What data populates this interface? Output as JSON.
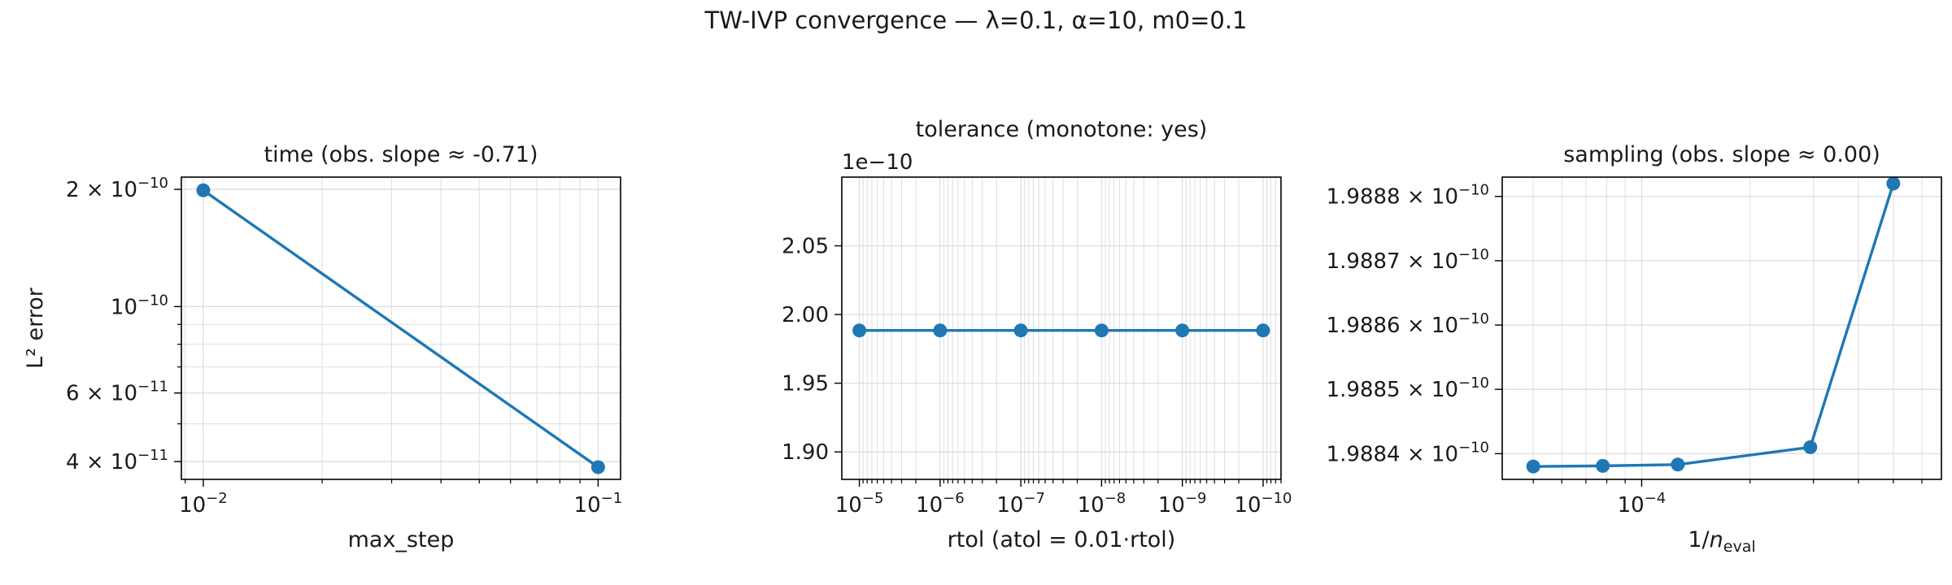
{
  "suptitle": "TW-IVP convergence — λ=0.1, α=10, m0=0.1",
  "colors": {
    "series": "#1f77b4",
    "grid": "#dedede",
    "axes": "#000000"
  },
  "chart_data": [
    {
      "type": "line",
      "title": "time (obs. slope ≈ -0.71)",
      "xlabel": "max_step",
      "ylabel": "L² error",
      "xscale": "log",
      "yscale": "log",
      "xlim": [
        0.0088,
        0.114
      ],
      "ylim": [
        3.6e-11,
        2.15e-10
      ],
      "xticks": [
        {
          "value": 0.01,
          "mant": "10",
          "exp": "−2"
        },
        {
          "value": 0.1,
          "mant": "10",
          "exp": "−1"
        }
      ],
      "yticks": [
        {
          "value": 4e-11,
          "mant": "4 × 10",
          "exp": "−11"
        },
        {
          "value": 6e-11,
          "mant": "6 × 10",
          "exp": "−11"
        },
        {
          "value": 1e-10,
          "mant": "10",
          "exp": "−10"
        },
        {
          "value": 2e-10,
          "mant": "2 × 10",
          "exp": "−10"
        }
      ],
      "x": [
        0.01,
        0.1
      ],
      "y": [
        1.9884e-10,
        3.87e-11
      ],
      "grid": true
    },
    {
      "type": "line",
      "title": "tolerance (monotone: yes)",
      "xlabel": "rtol (atol = 0.01·rtol)",
      "ylabel": "",
      "offset_text": "1e−10",
      "xscale": "log",
      "x_inverted": true,
      "yscale": "linear",
      "xlim": [
        1.65e-05,
        6e-11
      ],
      "ylim": [
        1.88e-10,
        2.1e-10
      ],
      "xticks": [
        {
          "value": 1e-05,
          "mant": "10",
          "exp": "−5"
        },
        {
          "value": 1e-06,
          "mant": "10",
          "exp": "−6"
        },
        {
          "value": 1e-07,
          "mant": "10",
          "exp": "−7"
        },
        {
          "value": 1e-08,
          "mant": "10",
          "exp": "−8"
        },
        {
          "value": 1e-09,
          "mant": "10",
          "exp": "−9"
        },
        {
          "value": 1e-10,
          "mant": "10",
          "exp": "−10"
        }
      ],
      "yticks": [
        {
          "value": 1.9e-10,
          "label": "1.90"
        },
        {
          "value": 1.95e-10,
          "label": "1.95"
        },
        {
          "value": 2e-10,
          "label": "2.00"
        },
        {
          "value": 2.05e-10,
          "label": "2.05"
        }
      ],
      "x": [
        1e-05,
        1e-06,
        1e-07,
        1e-08,
        1e-09,
        1e-10
      ],
      "y": [
        1.9884e-10,
        1.9884e-10,
        1.9884e-10,
        1.9884e-10,
        1.9884e-10,
        1.9884e-10
      ],
      "grid": true
    },
    {
      "type": "line",
      "title": "sampling (obs. slope ≈ 0.00)",
      "xlabel": "1/n_eval",
      "xlabel_base": "1/",
      "xlabel_var": "n",
      "xlabel_sub": "eval",
      "ylabel": "",
      "xscale": "log",
      "yscale": "linear",
      "xlim": [
        4.1e-05,
        0.00068
      ],
      "ylim": [
        1.98836e-10,
        1.98883e-10
      ],
      "xticks": [
        {
          "value": 0.0001,
          "mant": "10",
          "exp": "−4"
        }
      ],
      "yticks": [
        {
          "value": 1.9884e-10,
          "mant": "1.9884 × 10",
          "exp": "−10"
        },
        {
          "value": 1.9885e-10,
          "mant": "1.9885 × 10",
          "exp": "−10"
        },
        {
          "value": 1.9886e-10,
          "mant": "1.9886 × 10",
          "exp": "−10"
        },
        {
          "value": 1.9887e-10,
          "mant": "1.9887 × 10",
          "exp": "−10"
        },
        {
          "value": 1.9888e-10,
          "mant": "1.9888 × 10",
          "exp": "−10"
        }
      ],
      "x": [
        5e-05,
        7.8e-05,
        0.000126,
        0.000294,
        0.0005
      ],
      "y": [
        1.98838e-10,
        1.988381e-10,
        1.988383e-10,
        1.98841e-10,
        1.98882e-10
      ],
      "grid": true
    }
  ]
}
